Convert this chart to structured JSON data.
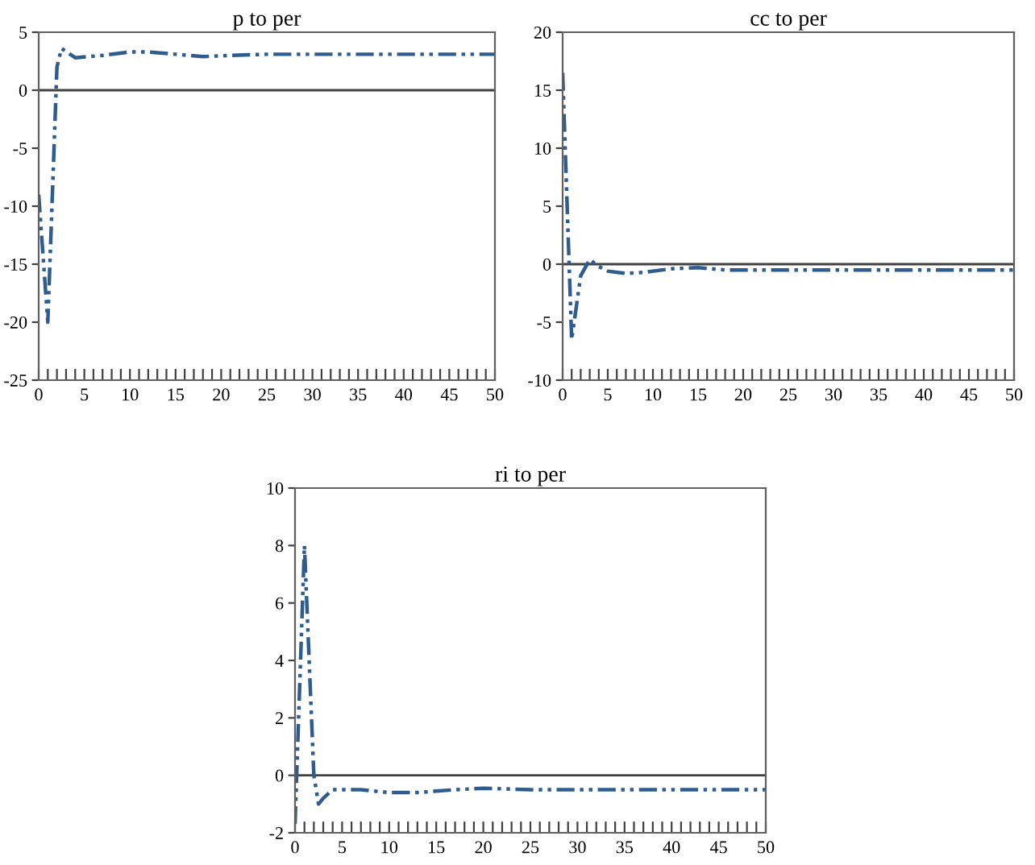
{
  "chart_data": [
    {
      "type": "line",
      "title": "p to per",
      "xlim": [
        0,
        50
      ],
      "ylim": [
        -25,
        5
      ],
      "yticks": [
        -25,
        -20,
        -15,
        -10,
        -5,
        0,
        5
      ],
      "xticks": [
        0,
        {
          "value": 1,
          "label": null
        },
        {
          "value": 2,
          "label": null
        },
        {
          "value": 3,
          "label": null
        },
        {
          "value": 4,
          "label": null
        },
        5,
        {
          "value": 6,
          "label": null
        },
        {
          "value": 7,
          "label": null
        },
        {
          "value": 8,
          "label": null
        },
        {
          "value": 9,
          "label": null
        },
        10,
        {
          "value": 11,
          "label": null
        },
        {
          "value": 12,
          "label": null
        },
        {
          "value": 13,
          "label": null
        },
        {
          "value": 14,
          "label": null
        },
        15,
        {
          "value": 16,
          "label": null
        },
        {
          "value": 17,
          "label": null
        },
        {
          "value": 18,
          "label": null
        },
        {
          "value": 19,
          "label": null
        },
        20,
        {
          "value": 21,
          "label": null
        },
        {
          "value": 22,
          "label": null
        },
        {
          "value": 23,
          "label": null
        },
        {
          "value": 24,
          "label": null
        },
        25,
        {
          "value": 26,
          "label": null
        },
        {
          "value": 27,
          "label": null
        },
        {
          "value": 28,
          "label": null
        },
        {
          "value": 29,
          "label": null
        },
        30,
        {
          "value": 31,
          "label": null
        },
        {
          "value": 32,
          "label": null
        },
        {
          "value": 33,
          "label": null
        },
        {
          "value": 34,
          "label": null
        },
        35,
        {
          "value": 36,
          "label": null
        },
        {
          "value": 37,
          "label": null
        },
        {
          "value": 38,
          "label": null
        },
        {
          "value": 39,
          "label": null
        },
        40,
        {
          "value": 41,
          "label": null
        },
        {
          "value": 42,
          "label": null
        },
        {
          "value": 43,
          "label": null
        },
        {
          "value": 44,
          "label": null
        },
        45,
        {
          "value": 46,
          "label": null
        },
        {
          "value": 47,
          "label": null
        },
        {
          "value": 48,
          "label": null
        },
        {
          "value": 49,
          "label": null
        },
        50
      ],
      "line_style": "dashed",
      "ref_lines": [
        {
          "axis": "y",
          "value": 0,
          "color": "#404040"
        }
      ],
      "series": [
        {
          "color": "#2e5c8e",
          "x": [
            0,
            1,
            2,
            2.5,
            4,
            7,
            10,
            12,
            15,
            18,
            21,
            25,
            50
          ],
          "values": [
            -9,
            -20,
            2,
            3.6,
            2.8,
            3.0,
            3.3,
            3.3,
            3.1,
            2.9,
            3.0,
            3.1,
            3.1
          ]
        }
      ]
    },
    {
      "type": "line",
      "title": "cc to per",
      "xlim": [
        0,
        50
      ],
      "ylim": [
        -10,
        20
      ],
      "yticks": [
        -10,
        -5,
        0,
        5,
        10,
        15,
        20
      ],
      "xticks": [
        0,
        {
          "value": 1,
          "label": null
        },
        {
          "value": 2,
          "label": null
        },
        {
          "value": 3,
          "label": null
        },
        {
          "value": 4,
          "label": null
        },
        5,
        {
          "value": 6,
          "label": null
        },
        {
          "value": 7,
          "label": null
        },
        {
          "value": 8,
          "label": null
        },
        {
          "value": 9,
          "label": null
        },
        10,
        {
          "value": 11,
          "label": null
        },
        {
          "value": 12,
          "label": null
        },
        {
          "value": 13,
          "label": null
        },
        {
          "value": 14,
          "label": null
        },
        15,
        {
          "value": 16,
          "label": null
        },
        {
          "value": 17,
          "label": null
        },
        {
          "value": 18,
          "label": null
        },
        {
          "value": 19,
          "label": null
        },
        20,
        {
          "value": 21,
          "label": null
        },
        {
          "value": 22,
          "label": null
        },
        {
          "value": 23,
          "label": null
        },
        {
          "value": 24,
          "label": null
        },
        25,
        {
          "value": 26,
          "label": null
        },
        {
          "value": 27,
          "label": null
        },
        {
          "value": 28,
          "label": null
        },
        {
          "value": 29,
          "label": null
        },
        30,
        {
          "value": 31,
          "label": null
        },
        {
          "value": 32,
          "label": null
        },
        {
          "value": 33,
          "label": null
        },
        {
          "value": 34,
          "label": null
        },
        35,
        {
          "value": 36,
          "label": null
        },
        {
          "value": 37,
          "label": null
        },
        {
          "value": 38,
          "label": null
        },
        {
          "value": 39,
          "label": null
        },
        40,
        {
          "value": 41,
          "label": null
        },
        {
          "value": 42,
          "label": null
        },
        {
          "value": 43,
          "label": null
        },
        {
          "value": 44,
          "label": null
        },
        45,
        {
          "value": 46,
          "label": null
        },
        {
          "value": 47,
          "label": null
        },
        {
          "value": 48,
          "label": null
        },
        {
          "value": 49,
          "label": null
        },
        50
      ],
      "line_style": "dashed",
      "ref_lines": [
        {
          "axis": "y",
          "value": 0,
          "color": "#404040"
        }
      ],
      "series": [
        {
          "color": "#2e5c8e",
          "x": [
            0,
            1,
            2,
            3,
            4,
            5,
            7,
            9,
            12,
            15,
            18,
            25,
            50
          ],
          "values": [
            16.5,
            -6.5,
            -1,
            0.4,
            -0.2,
            -0.6,
            -0.8,
            -0.7,
            -0.4,
            -0.3,
            -0.5,
            -0.5,
            -0.5
          ]
        }
      ]
    },
    {
      "type": "line",
      "title": "ri to per",
      "xlim": [
        0,
        50
      ],
      "ylim": [
        -2,
        10
      ],
      "yticks": [
        -2,
        0,
        2,
        4,
        6,
        8,
        10
      ],
      "xticks": [
        0,
        {
          "value": 1,
          "label": null
        },
        {
          "value": 2,
          "label": null
        },
        {
          "value": 3,
          "label": null
        },
        {
          "value": 4,
          "label": null
        },
        5,
        {
          "value": 6,
          "label": null
        },
        {
          "value": 7,
          "label": null
        },
        {
          "value": 8,
          "label": null
        },
        {
          "value": 9,
          "label": null
        },
        10,
        {
          "value": 11,
          "label": null
        },
        {
          "value": 12,
          "label": null
        },
        {
          "value": 13,
          "label": null
        },
        {
          "value": 14,
          "label": null
        },
        15,
        {
          "value": 16,
          "label": null
        },
        {
          "value": 17,
          "label": null
        },
        {
          "value": 18,
          "label": null
        },
        {
          "value": 19,
          "label": null
        },
        20,
        {
          "value": 21,
          "label": null
        },
        {
          "value": 22,
          "label": null
        },
        {
          "value": 23,
          "label": null
        },
        {
          "value": 24,
          "label": null
        },
        25,
        {
          "value": 26,
          "label": null
        },
        {
          "value": 27,
          "label": null
        },
        {
          "value": 28,
          "label": null
        },
        {
          "value": 29,
          "label": null
        },
        30,
        {
          "value": 31,
          "label": null
        },
        {
          "value": 32,
          "label": null
        },
        {
          "value": 33,
          "label": null
        },
        {
          "value": 34,
          "label": null
        },
        35,
        {
          "value": 36,
          "label": null
        },
        {
          "value": 37,
          "label": null
        },
        {
          "value": 38,
          "label": null
        },
        {
          "value": 39,
          "label": null
        },
        40,
        {
          "value": 41,
          "label": null
        },
        {
          "value": 42,
          "label": null
        },
        {
          "value": 43,
          "label": null
        },
        {
          "value": 44,
          "label": null
        },
        45,
        {
          "value": 46,
          "label": null
        },
        {
          "value": 47,
          "label": null
        },
        {
          "value": 48,
          "label": null
        },
        {
          "value": 49,
          "label": null
        },
        50
      ],
      "line_style": "dashed",
      "ref_lines": [
        {
          "axis": "y",
          "value": 0,
          "color": "#404040"
        }
      ],
      "series": [
        {
          "color": "#2e5c8e",
          "x": [
            0,
            1,
            2,
            2.5,
            3,
            4,
            7,
            10,
            13,
            17,
            20,
            25,
            50
          ],
          "values": [
            -1.7,
            8,
            0,
            -1,
            -0.8,
            -0.5,
            -0.5,
            -0.6,
            -0.6,
            -0.5,
            -0.45,
            -0.5,
            -0.5
          ]
        }
      ]
    }
  ]
}
